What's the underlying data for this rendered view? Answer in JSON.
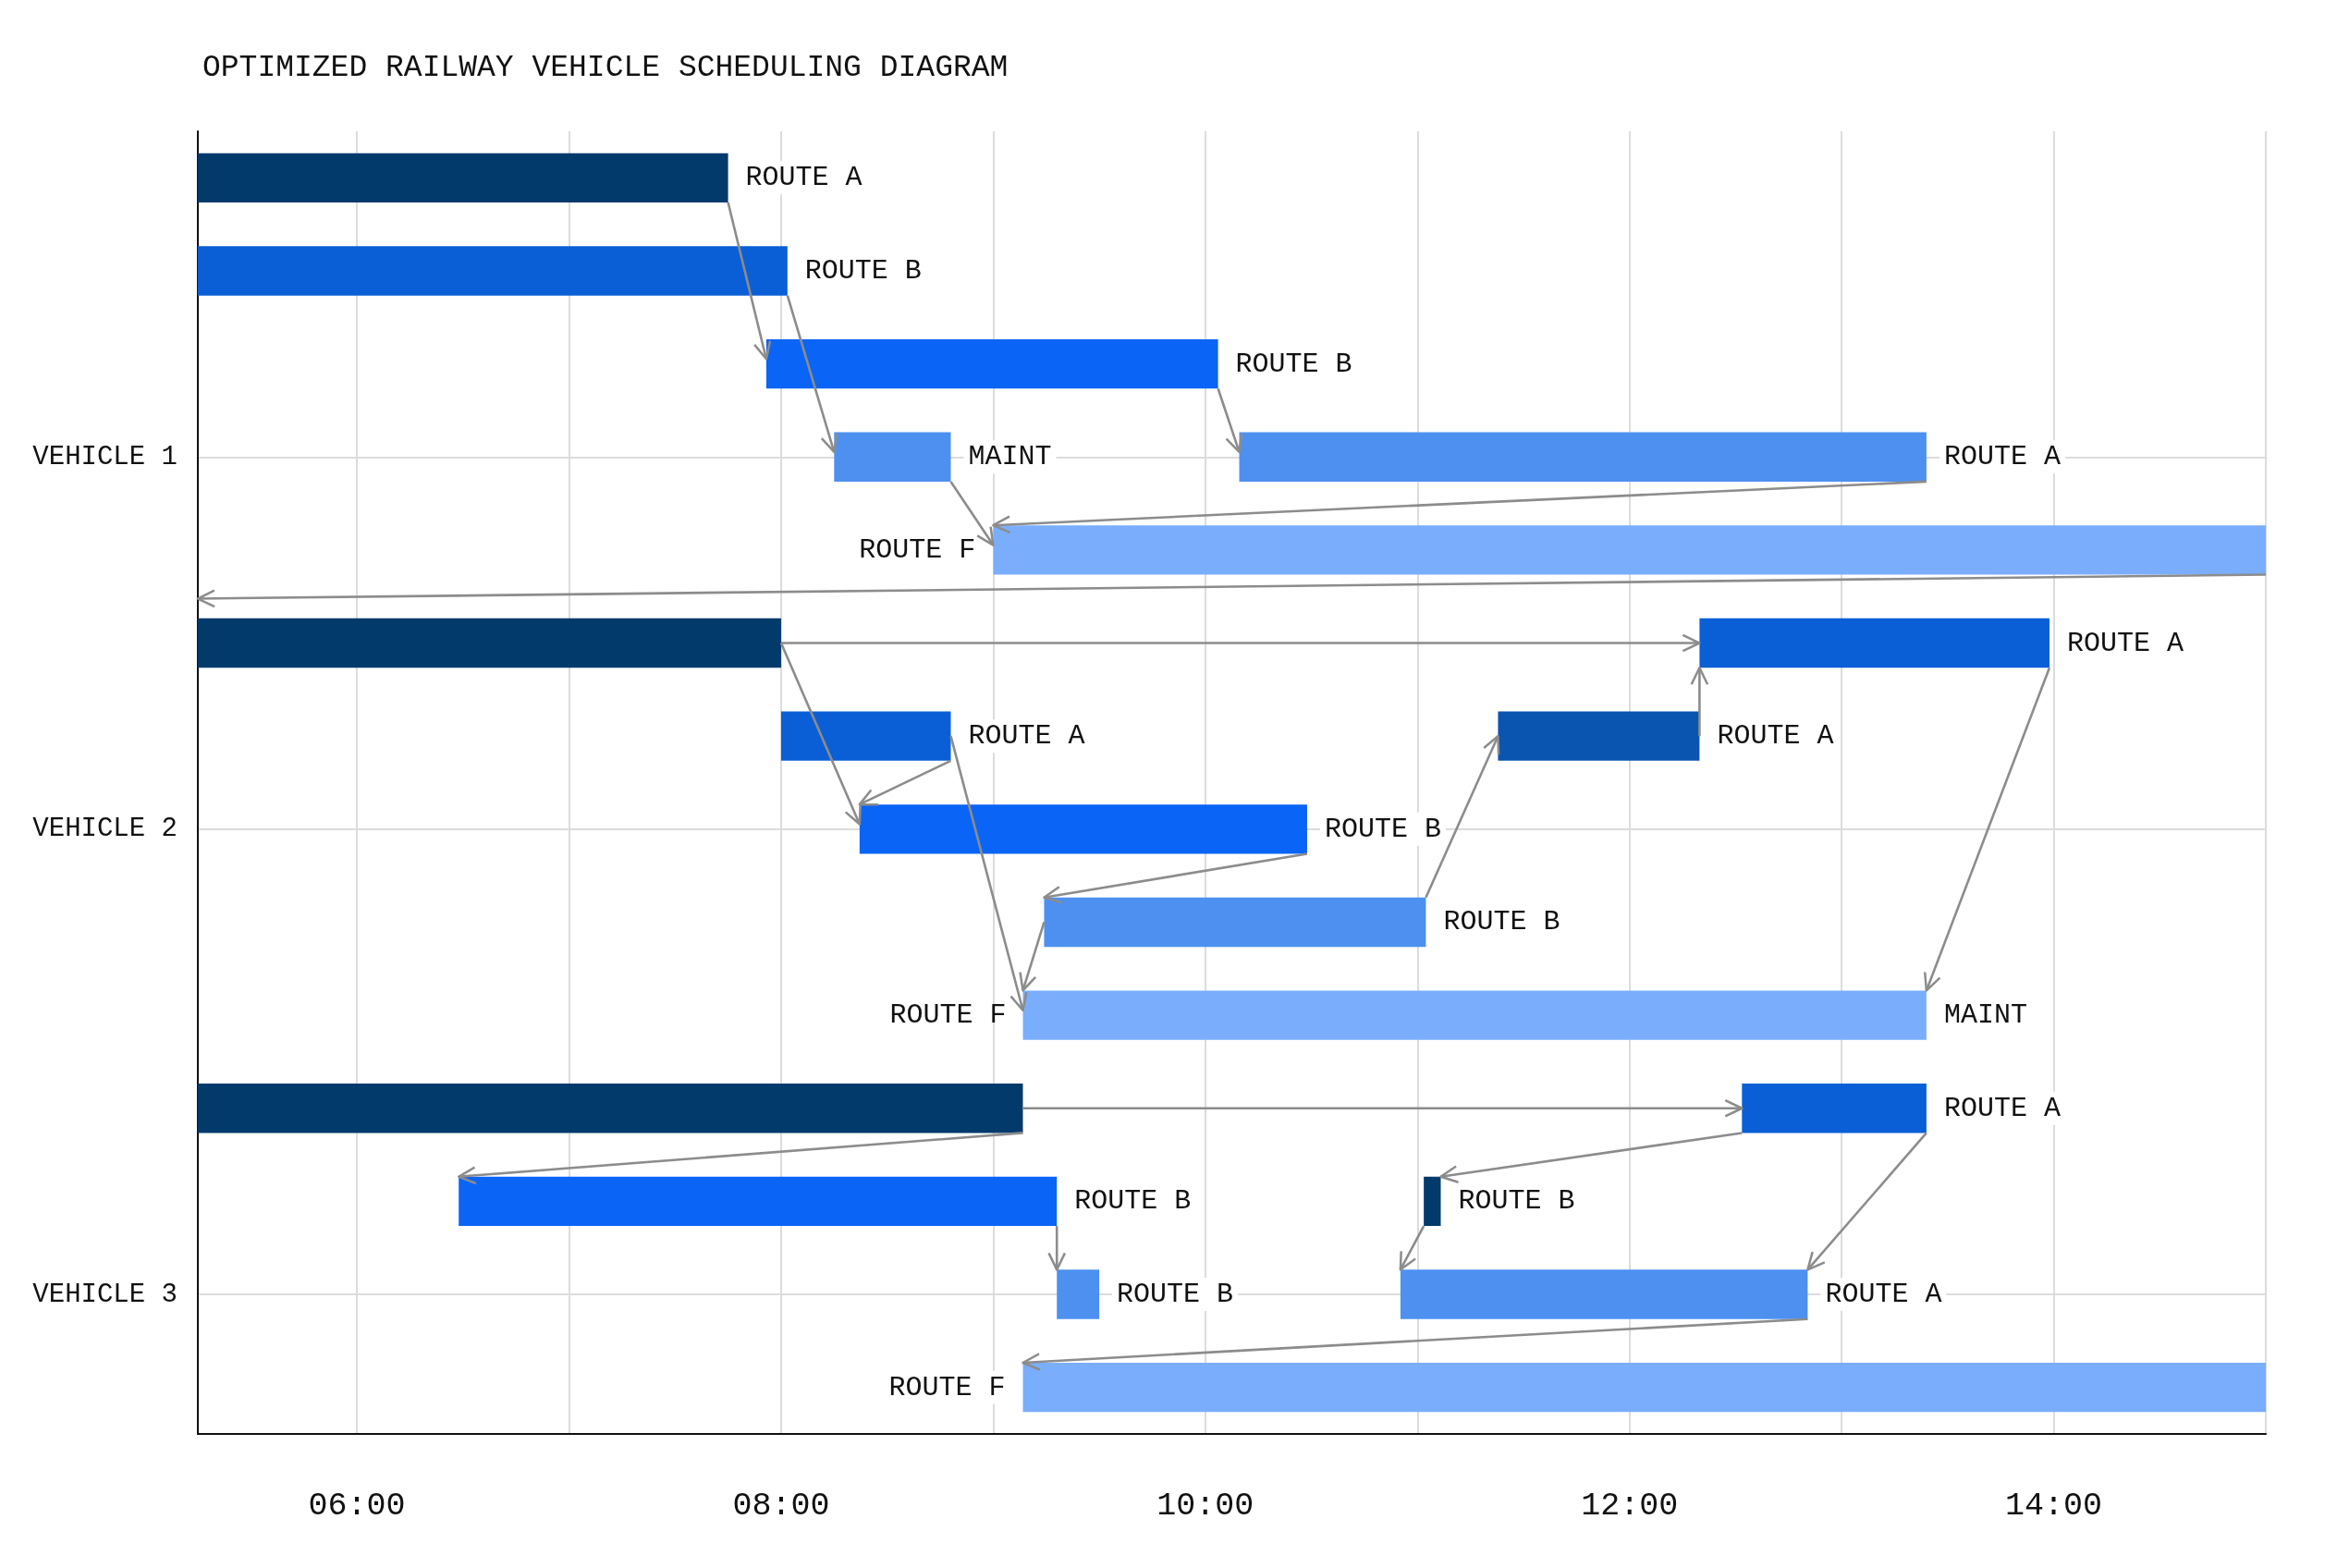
{
  "chart_data": {
    "type": "bar",
    "orientation": "horizontal",
    "title": "OPTIMIZED RAILWAY VEHICLE SCHEDULING DIAGRAM",
    "categories": [
      null,
      null,
      null,
      "VEHICLE 1",
      null,
      null,
      null,
      "VEHICLE 2",
      null,
      null,
      null,
      null,
      "VEHICLE 3",
      null
    ],
    "series": [
      {
        "base": [
          5.25,
          5.25,
          7.93,
          8.25,
          9.0,
          5.25,
          8.0,
          8.37,
          9.24,
          9.14,
          5.25,
          6.48,
          9.3,
          9.14
        ],
        "values": [
          2.5,
          2.78,
          2.13,
          0.55,
          6.0,
          2.75,
          0.8,
          2.11,
          1.8,
          4.26,
          3.89,
          2.82,
          0.2,
          5.86
        ],
        "colors": [
          "#033a6c",
          "#0a5fd6",
          "#0a64f5",
          "#4d90f0",
          "#7aaefc",
          "#033a6c",
          "#0a5fd6",
          "#0a64f5",
          "#4d90f0",
          "#7aaefc",
          "#033a6c",
          "#0a64f5",
          "#4d90f0",
          "#7aaefc"
        ],
        "value_labels": [
          "ROUTE A",
          "ROUTE B",
          "ROUTE B",
          "MAINT",
          "ROUTE F",
          null,
          "ROUTE A",
          "ROUTE B",
          "ROUTE B",
          "MAINT",
          null,
          "ROUTE B",
          "ROUTE B",
          "ROUTE F"
        ]
      },
      {
        "base": [
          null,
          null,
          null,
          10.16,
          null,
          12.33,
          11.38,
          null,
          null,
          null,
          12.53,
          11.03,
          10.92,
          null
        ],
        "values": [
          null,
          null,
          null,
          3.24,
          null,
          1.65,
          0.95,
          null,
          null,
          null,
          0.87,
          0.08,
          1.92,
          null
        ],
        "colors": [
          null,
          null,
          null,
          "#4d90f0",
          null,
          "#0a5fd6",
          "#0a55b0",
          null,
          null,
          null,
          "#0a5fd6",
          "#033a6c",
          "#4d90f0",
          null
        ],
        "value_labels": [
          null,
          null,
          null,
          "ROUTE A",
          null,
          "ROUTE A",
          "ROUTE A",
          null,
          null,
          null,
          "ROUTE A",
          "ROUTE B",
          "ROUTE A",
          null
        ]
      }
    ],
    "annotations": [
      {
        "text": "ROUTE F",
        "x": 9.14
      }
    ],
    "xlim": [
      5.25,
      15
    ],
    "xticks": [
      {
        "value": 6,
        "label": "06:00"
      },
      {
        "value": 7,
        "label": null
      },
      {
        "value": 8,
        "label": "08:00"
      },
      {
        "value": 9,
        "label": null
      },
      {
        "value": 10,
        "label": "10:00"
      },
      {
        "value": 11,
        "label": null
      },
      {
        "value": 12,
        "label": "12:00"
      },
      {
        "value": 13,
        "label": null
      },
      {
        "value": 14,
        "label": "14:00"
      },
      {
        "value": 15,
        "label": null
      }
    ],
    "grid": true
  }
}
